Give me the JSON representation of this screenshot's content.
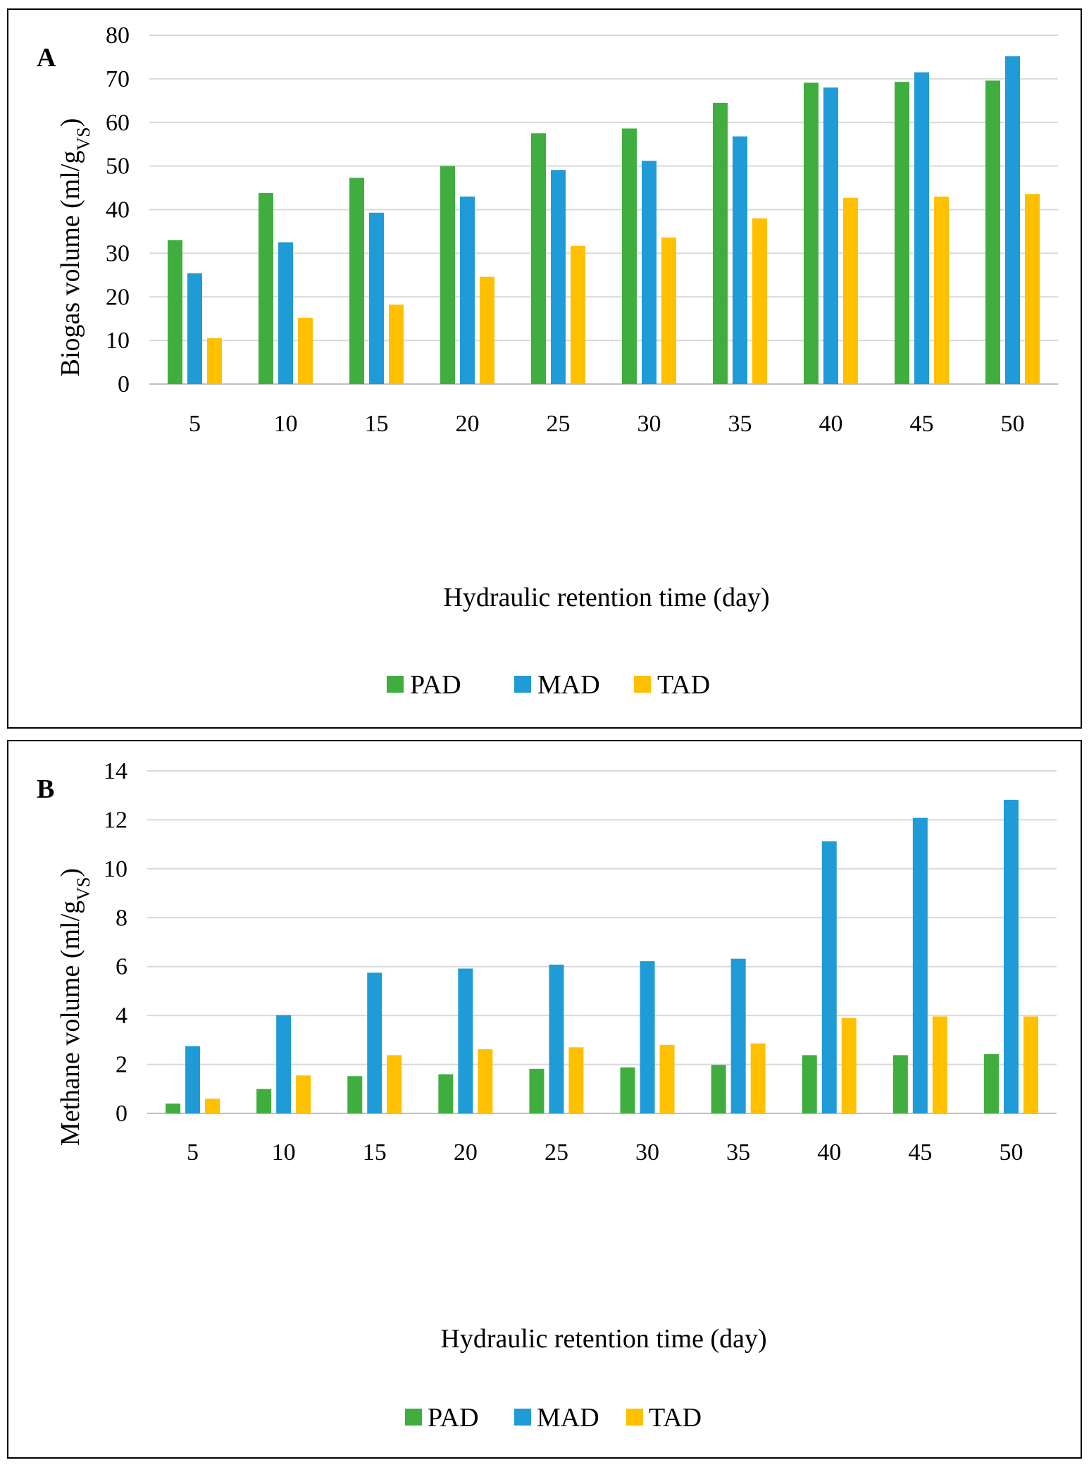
{
  "colors": {
    "PAD": "#3fae3f",
    "MAD": "#1f9bd7",
    "TAD": "#ffc000",
    "grid": "#d9d9d9"
  },
  "chart_data": [
    {
      "type": "bar",
      "panel_label": "A",
      "categories": [
        "5",
        "10",
        "15",
        "20",
        "25",
        "30",
        "35",
        "40",
        "45",
        "50"
      ],
      "series": [
        {
          "name": "PAD",
          "values": [
            33,
            43.8,
            47.3,
            50,
            57.5,
            58.6,
            64.5,
            69.1,
            69.3,
            69.6
          ]
        },
        {
          "name": "MAD",
          "values": [
            25.4,
            32.5,
            39.3,
            43,
            49.1,
            51.2,
            56.8,
            68,
            71.5,
            75.2
          ]
        },
        {
          "name": "TAD",
          "values": [
            10.5,
            15.2,
            18.2,
            24.6,
            31.7,
            33.6,
            38,
            42.7,
            43,
            43.6
          ]
        }
      ],
      "xlabel": "Hydraulic retention time (day)",
      "ylabel_main": "Biogas volume (ml/g",
      "ylabel_sub": "VS",
      "ylabel_close": ")",
      "ylim": [
        0,
        80
      ],
      "ytick_step": 10,
      "yticks": [
        "0",
        "10",
        "20",
        "30",
        "40",
        "50",
        "60",
        "70",
        "80"
      ],
      "legend": [
        "PAD",
        "MAD",
        "TAD"
      ],
      "legend_position": "bottom-center",
      "grid": true
    },
    {
      "type": "bar",
      "panel_label": "B",
      "categories": [
        "5",
        "10",
        "15",
        "20",
        "25",
        "30",
        "35",
        "40",
        "45",
        "50"
      ],
      "series": [
        {
          "name": "PAD",
          "values": [
            0.4,
            1,
            1.52,
            1.6,
            1.82,
            1.88,
            1.98,
            2.38,
            2.38,
            2.42
          ]
        },
        {
          "name": "MAD",
          "values": [
            2.75,
            4.02,
            5.75,
            5.92,
            6.08,
            6.22,
            6.32,
            11.12,
            12.08,
            12.82
          ]
        },
        {
          "name": "TAD",
          "values": [
            0.6,
            1.55,
            2.38,
            2.62,
            2.7,
            2.8,
            2.86,
            3.9,
            3.96,
            3.96
          ]
        }
      ],
      "xlabel": "Hydraulic retention time (day)",
      "ylabel_main": "Methane volume (ml/g",
      "ylabel_sub": "VS",
      "ylabel_close": ")",
      "ylim": [
        0,
        14
      ],
      "ytick_step": 2,
      "yticks": [
        "0",
        "2",
        "4",
        "6",
        "8",
        "10",
        "12",
        "14"
      ],
      "legend": [
        "PAD",
        "MAD",
        "TAD"
      ],
      "legend_position": "bottom-center",
      "grid": true
    }
  ]
}
